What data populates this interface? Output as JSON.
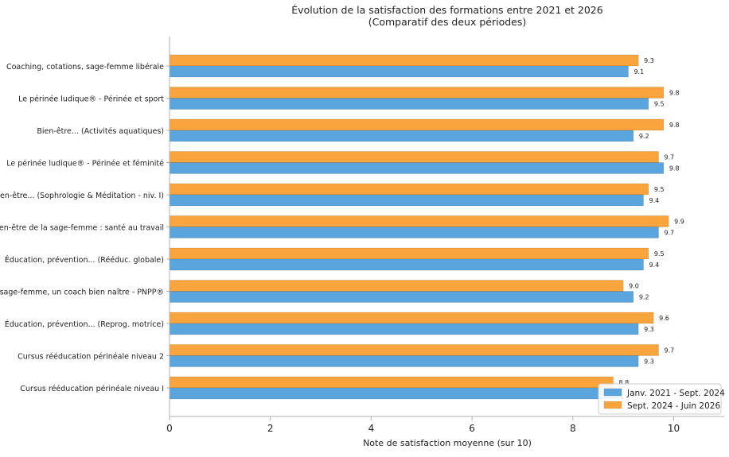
{
  "chart_data": {
    "type": "bar",
    "orientation": "horizontal",
    "title": "Évolution de la satisfaction des formations entre 2021 et 2026",
    "subtitle": "(Comparatif des deux périodes)",
    "xlabel": "Note de satisfaction moyenne (sur 10)",
    "ylabel": "",
    "xlim": [
      0,
      11
    ],
    "xticks": [
      0,
      2,
      4,
      6,
      8,
      10
    ],
    "grid": false,
    "legend_position": "bottom-right",
    "categories": [
      "Coaching, cotations, sage-femme libérale",
      "Le périnée ludique® - Périnée et sport",
      "Bien-être... (Activités aquatiques)",
      "Le périnée ludique® - Périnée et féminité",
      "Bien-être... (Sophrologie & Méditation - niv. I)",
      "Bien-être de la sage-femme : santé au travail",
      "Éducation, prévention... (Rééduc. globale)",
      "La sage-femme, un coach bien naître - PNPP®",
      "Éducation, prévention... (Reprog. motrice)",
      "Cursus rééducation périnéale niveau 2",
      "Cursus rééducation périnéale niveau I"
    ],
    "series": [
      {
        "name": "Sept. 2024 - Juin 2026",
        "color": "#F9A43C",
        "values": [
          9.3,
          9.8,
          9.8,
          9.7,
          9.5,
          9.9,
          9.5,
          9.0,
          9.6,
          9.7,
          8.8
        ],
        "labels": [
          "9.3",
          "9.8",
          "9.8",
          "9.7",
          "9.5",
          "9.9",
          "9.5",
          "9.0",
          "9.6",
          "9.7",
          "8.8"
        ]
      },
      {
        "name": "Janv. 2021 - Sept. 2024",
        "color": "#5AA5DD",
        "values": [
          9.1,
          9.5,
          9.2,
          9.8,
          9.4,
          9.7,
          9.4,
          9.2,
          9.3,
          9.3,
          9.0
        ],
        "labels": [
          "9.1",
          "9.5",
          "9.2",
          "9.8",
          "9.4",
          "9.7",
          "9.4",
          "9.2",
          "9.3",
          "9.3",
          ""
        ]
      }
    ],
    "legend": [
      {
        "label": "Janv. 2021 - Sept. 2024",
        "color": "#5AA5DD"
      },
      {
        "label": "Sept. 2024 - Juin 2026",
        "color": "#F9A43C"
      }
    ]
  }
}
